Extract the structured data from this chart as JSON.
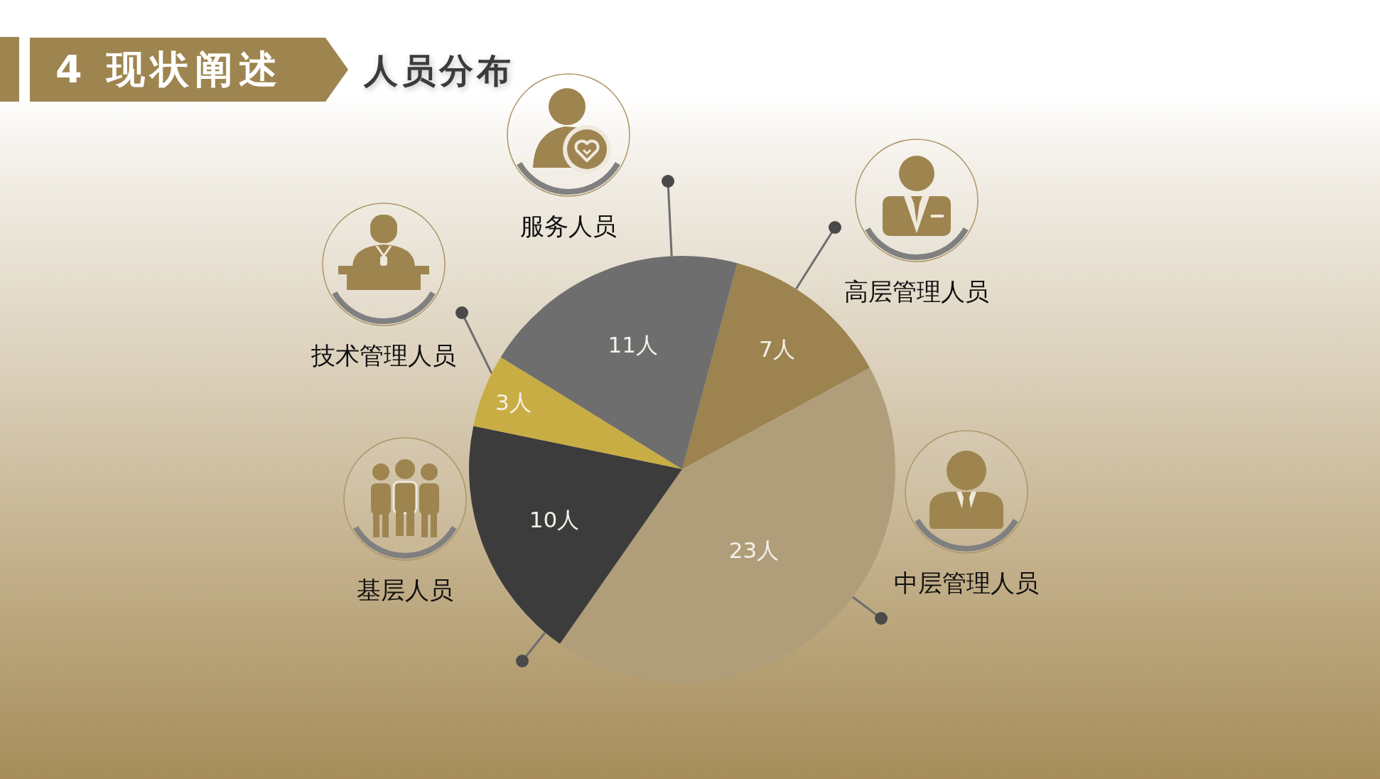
{
  "chart_data": {
    "type": "pie",
    "title": "4 现状阐述",
    "subtitle": "人员分布",
    "categories": [
      "高层管理人员",
      "中层管理人员",
      "基层人员",
      "技术管理人员",
      "服务人员"
    ],
    "values": [
      7,
      23,
      10,
      3,
      11
    ],
    "colors": [
      "#9c8350",
      "#b09e7a",
      "#3c3c3c",
      "#c8ad45",
      "#6e6e6e"
    ],
    "value_labels": [
      "7人",
      "23人",
      "10人",
      "3人",
      "11人"
    ],
    "legend": false
  }
}
